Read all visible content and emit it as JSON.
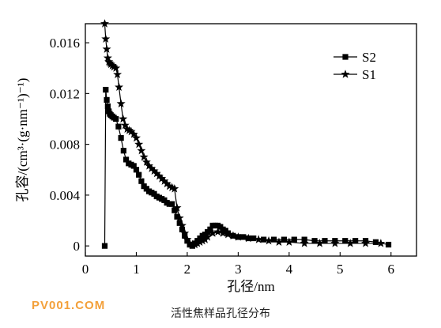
{
  "caption": "活性焦样品孔径分布",
  "watermark": "PV001.COM",
  "chart_data": {
    "type": "line",
    "title": "",
    "xlabel": "孔径/nm",
    "ylabel": "孔容/(cm³·(g·nm⁻¹)⁻¹)",
    "xlim": [
      0,
      6.5
    ],
    "ylim": [
      -0.0008,
      0.0175
    ],
    "x_ticks": [
      0,
      1,
      2,
      3,
      4,
      5,
      6
    ],
    "x_tick_labels": [
      "0",
      "1",
      "2",
      "3",
      "4",
      "5",
      "6"
    ],
    "y_ticks": [
      0,
      0.004,
      0.008,
      0.012,
      0.016
    ],
    "y_tick_labels": [
      "0",
      "0.004",
      "0.008",
      "0.012",
      "0.016"
    ],
    "grid": false,
    "legend_position": "top-right",
    "series": [
      {
        "name": "S2",
        "marker": "square",
        "x": [
          0.38,
          0.4,
          0.42,
          0.44,
          0.46,
          0.48,
          0.5,
          0.53,
          0.56,
          0.6,
          0.65,
          0.7,
          0.75,
          0.8,
          0.85,
          0.9,
          0.95,
          1.0,
          1.05,
          1.1,
          1.15,
          1.2,
          1.25,
          1.3,
          1.35,
          1.4,
          1.45,
          1.5,
          1.55,
          1.6,
          1.65,
          1.7,
          1.75,
          1.8,
          1.85,
          1.9,
          1.95,
          2.0,
          2.05,
          2.1,
          2.15,
          2.2,
          2.25,
          2.3,
          2.35,
          2.4,
          2.45,
          2.5,
          2.55,
          2.6,
          2.65,
          2.7,
          2.75,
          2.8,
          2.9,
          3.0,
          3.1,
          3.2,
          3.3,
          3.5,
          3.7,
          3.9,
          4.1,
          4.3,
          4.5,
          4.7,
          4.9,
          5.1,
          5.3,
          5.5,
          5.7,
          5.95
        ],
        "values": [
          0.0,
          0.0123,
          0.0115,
          0.011,
          0.0106,
          0.0104,
          0.0103,
          0.0102,
          0.0101,
          0.01,
          0.0094,
          0.0085,
          0.0075,
          0.0068,
          0.0065,
          0.0064,
          0.0063,
          0.006,
          0.0056,
          0.0051,
          0.0047,
          0.0045,
          0.0043,
          0.0042,
          0.0041,
          0.0039,
          0.0038,
          0.0037,
          0.0036,
          0.0034,
          0.0033,
          0.0033,
          0.0028,
          0.0023,
          0.0018,
          0.0013,
          0.0008,
          0.0004,
          0.0001,
          0.0,
          0.0002,
          0.0004,
          0.0006,
          0.0008,
          0.0009,
          0.0011,
          0.0013,
          0.0016,
          0.0016,
          0.0016,
          0.0015,
          0.0013,
          0.0012,
          0.001,
          0.0008,
          0.0007,
          0.0007,
          0.0006,
          0.0006,
          0.0005,
          0.0005,
          0.0005,
          0.0005,
          0.0005,
          0.0004,
          0.0004,
          0.0004,
          0.0004,
          0.0004,
          0.0004,
          0.0003,
          0.0001
        ]
      },
      {
        "name": "S1",
        "marker": "star",
        "x": [
          0.38,
          0.4,
          0.42,
          0.44,
          0.46,
          0.48,
          0.5,
          0.53,
          0.56,
          0.6,
          0.63,
          0.66,
          0.7,
          0.74,
          0.78,
          0.82,
          0.86,
          0.9,
          0.95,
          1.0,
          1.05,
          1.1,
          1.15,
          1.2,
          1.25,
          1.3,
          1.35,
          1.4,
          1.45,
          1.5,
          1.55,
          1.6,
          1.65,
          1.7,
          1.75,
          1.8,
          1.85,
          1.9,
          1.95,
          2.0,
          2.05,
          2.1,
          2.15,
          2.2,
          2.25,
          2.3,
          2.35,
          2.4,
          2.5,
          2.6,
          2.7,
          2.8,
          2.9,
          3.0,
          3.2,
          3.4,
          3.6,
          3.8,
          4.0,
          4.3,
          4.6,
          4.9,
          5.2,
          5.5,
          5.8
        ],
        "values": [
          0.0175,
          0.0163,
          0.0155,
          0.0148,
          0.0145,
          0.0144,
          0.0143,
          0.0142,
          0.0141,
          0.014,
          0.0135,
          0.0125,
          0.0112,
          0.01,
          0.0095,
          0.0092,
          0.0091,
          0.009,
          0.0088,
          0.0085,
          0.008,
          0.0075,
          0.007,
          0.0066,
          0.0063,
          0.0061,
          0.0059,
          0.0057,
          0.0055,
          0.0053,
          0.0051,
          0.0049,
          0.0047,
          0.0046,
          0.0045,
          0.003,
          0.0022,
          0.0016,
          0.001,
          0.0005,
          0.0002,
          0.0001,
          0.0001,
          0.0002,
          0.0003,
          0.0004,
          0.0005,
          0.0007,
          0.001,
          0.0011,
          0.001,
          0.0009,
          0.0008,
          0.0007,
          0.0006,
          0.0005,
          0.0004,
          0.0003,
          0.0003,
          0.0002,
          0.0002,
          0.0002,
          0.0002,
          0.0002,
          0.0002
        ]
      }
    ]
  }
}
